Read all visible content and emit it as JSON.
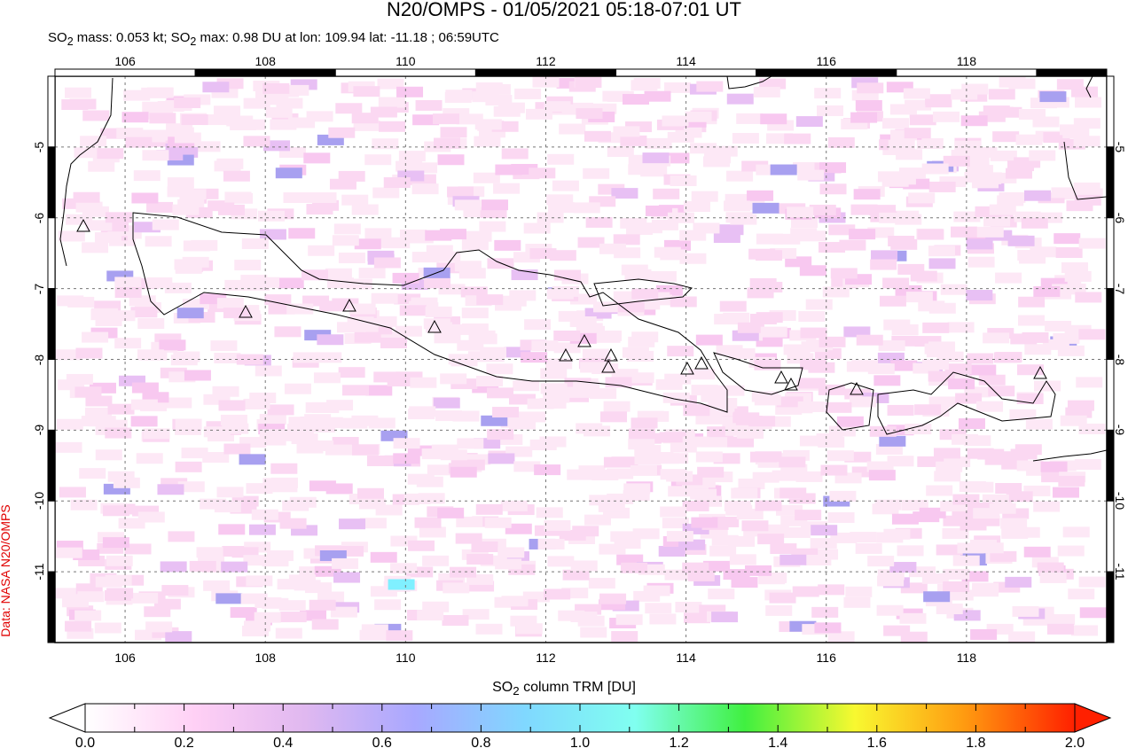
{
  "title": "N20/OMPS - 01/05/2021 05:18-07:01 UT",
  "subtitle_html_parts": {
    "a": "SO",
    "b": "2",
    "c": " mass: 0.053 kt; SO",
    "d": "2",
    "e": " max: 0.98 DU at lon: 109.94 lat: -11.18 ; 06:59UTC"
  },
  "credit": "Data: NASA N20/OMPS",
  "map": {
    "lon_range": [
      105,
      120
    ],
    "lat_range": [
      -12,
      -4
    ],
    "lon_ticks": [
      "106",
      "108",
      "110",
      "112",
      "114",
      "116",
      "118"
    ],
    "lat_ticks": [
      "-5",
      "-6",
      "-7",
      "-8",
      "-9",
      "-10",
      "-11"
    ],
    "grid": true,
    "volcano_marker": "triangle-icon",
    "max_so2": {
      "lon": 109.94,
      "lat": -11.18,
      "value_du": 0.98
    }
  },
  "colorbar": {
    "title_a": "SO",
    "title_b": "2",
    "title_c": " column TRM [DU]",
    "range": [
      0,
      2
    ],
    "labels": [
      "0.0",
      "0.2",
      "0.4",
      "0.6",
      "0.8",
      "1.0",
      "1.2",
      "1.4",
      "1.6",
      "1.8",
      "2.0"
    ],
    "colors": [
      "#ffffff",
      "#ffd0f5",
      "#e0b8f0",
      "#a8a8ff",
      "#80d8ff",
      "#80fff0",
      "#40f040",
      "#f8f830",
      "#ff9a10",
      "#ff2000"
    ]
  }
}
